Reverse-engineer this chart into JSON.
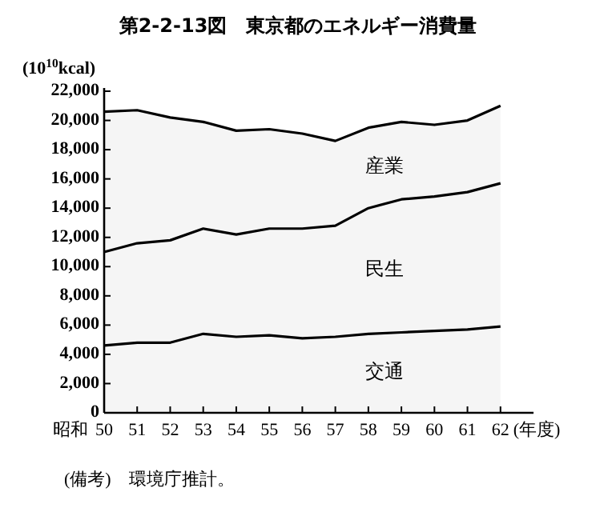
{
  "chart_data": {
    "type": "area",
    "stacked": true,
    "title": "第2-2-13図　東京都のエネルギー消費量",
    "ylabel": "(10$^{10}$kcal)",
    "xlabel": "(年度)",
    "annotations": [
      "昭和",
      "(備考)　環境庁推計。"
    ],
    "x": [
      50,
      51,
      52,
      53,
      54,
      55,
      56,
      57,
      58,
      59,
      60,
      61,
      62
    ],
    "xlim": [
      50,
      63
    ],
    "xticks": [
      50,
      51,
      52,
      53,
      54,
      55,
      56,
      57,
      58,
      59,
      60,
      61,
      62
    ],
    "ylim": [
      0,
      22000
    ],
    "yticks": [
      0,
      {
        "value": 2000,
        "label": "2,000"
      },
      {
        "value": 4000,
        "label": "4,000"
      },
      {
        "value": 6000,
        "label": "6,000"
      },
      {
        "value": 8000,
        "label": "8,000"
      },
      {
        "value": 10000,
        "label": "10,000"
      },
      {
        "value": 12000,
        "label": "12,000"
      },
      {
        "value": 14000,
        "label": "14,000"
      },
      {
        "value": 16000,
        "label": "16,000"
      },
      {
        "value": 18000,
        "label": "18,000"
      },
      {
        "value": 20000,
        "label": "20,000"
      },
      {
        "value": 22000,
        "label": "22,000"
      }
    ],
    "grid": false,
    "series": [
      {
        "name": "交通",
        "color": "#000000",
        "values": [
          4600,
          4800,
          4800,
          5400,
          5200,
          5300,
          5100,
          5200,
          5400,
          5500,
          5600,
          5700,
          5900
        ]
      },
      {
        "name": "民生",
        "color": "#000000",
        "values": [
          6400,
          6800,
          7000,
          7200,
          7000,
          7300,
          7500,
          7600,
          8600,
          9100,
          9200,
          9400,
          9800
        ]
      },
      {
        "name": "産業",
        "color": "#000000",
        "values": [
          9600,
          9100,
          8400,
          7300,
          7100,
          6800,
          6500,
          5800,
          5500,
          5300,
          4900,
          4900,
          5300
        ]
      }
    ]
  }
}
